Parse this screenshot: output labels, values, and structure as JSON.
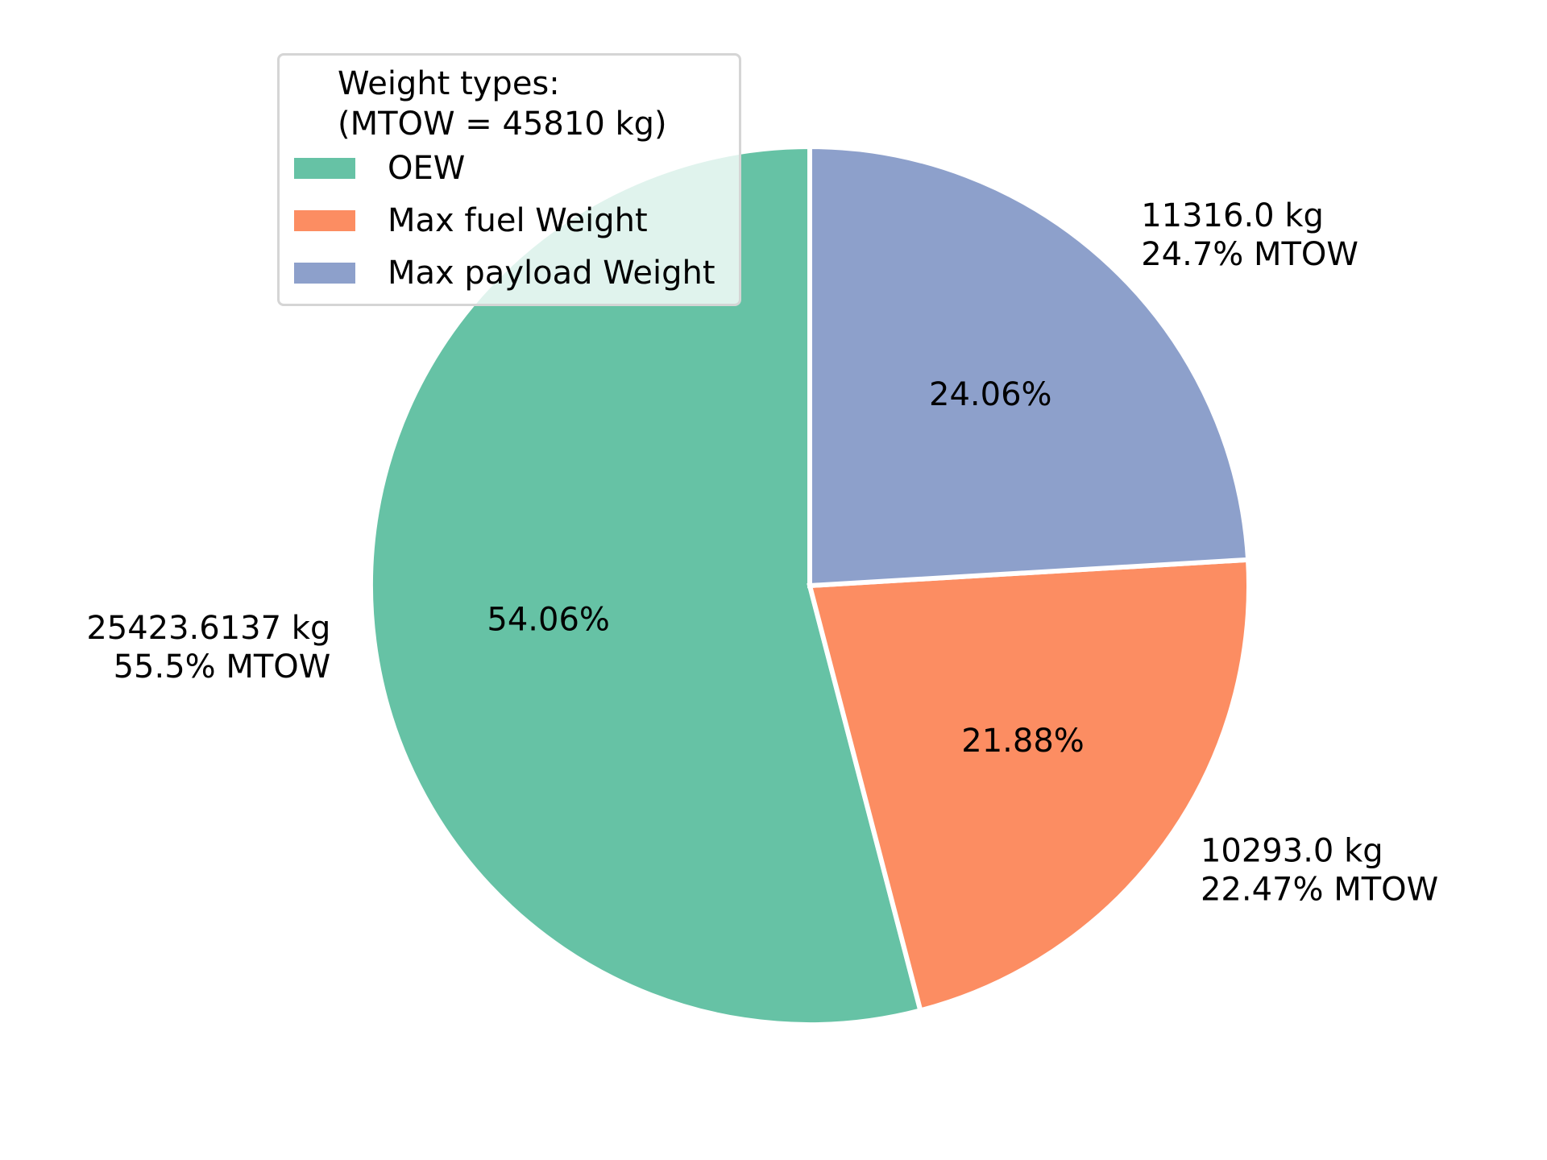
{
  "chart_data": {
    "type": "pie",
    "legend": {
      "title_line1": "Weight types:",
      "title_line2": "(MTOW = 45810 kg)",
      "placement": "upper-left"
    },
    "slices": [
      {
        "name": "OEW",
        "value": 25423.6137,
        "pct_label": "54.06%",
        "outer_line1": "25423.6137 kg",
        "outer_line2": "55.5% MTOW",
        "color": "#66c2a5"
      },
      {
        "name": "Max fuel Weight",
        "value": 10293.0,
        "pct_label": "21.88%",
        "outer_line1": "10293.0 kg",
        "outer_line2": "22.47% MTOW",
        "color": "#fc8d62"
      },
      {
        "name": "Max payload Weight",
        "value": 11316.0,
        "pct_label": "24.06%",
        "outer_line1": "11316.0 kg",
        "outer_line2": "24.7% MTOW",
        "color": "#8da0cb"
      }
    ],
    "start_angle_deg": 90,
    "direction": "counterclockwise"
  }
}
